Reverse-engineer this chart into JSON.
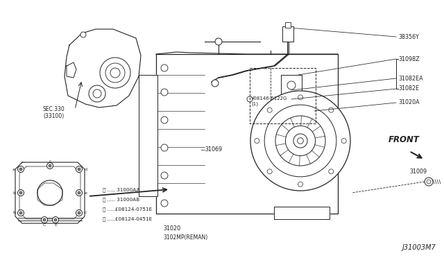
{
  "bg_color": "#ffffff",
  "line_color": "#222222",
  "text_color": "#222222",
  "diagram_id": "J31003M7",
  "labels": {
    "sec330": "SEC.330\n(33100)",
    "38356Y": "38356Y",
    "31098Z": "31098Z",
    "31082EA": "31082EA",
    "31082E": "31082E",
    "31020A": "31020A",
    "08146_6122G": "¥08146-6122G\n(1)",
    "31069": "31069",
    "31020": "31020",
    "3102MP": "3102MP(REMAN)",
    "31009": "31009",
    "FRONT": "FRONT",
    "legend_a": "ⓐ ..... 31000AA",
    "legend_b": "ⓑ ..... 31000AB",
    "legend_c": "ⓒ .....£08124-0751E",
    "legend_d": "ⓓ .....£08124-0451E"
  }
}
